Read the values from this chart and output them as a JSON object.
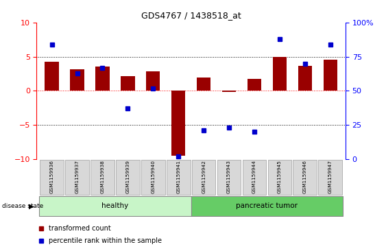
{
  "title": "GDS4767 / 1438518_at",
  "samples": [
    "GSM1159936",
    "GSM1159937",
    "GSM1159938",
    "GSM1159939",
    "GSM1159940",
    "GSM1159941",
    "GSM1159942",
    "GSM1159943",
    "GSM1159944",
    "GSM1159945",
    "GSM1159946",
    "GSM1159947"
  ],
  "transformed_count": [
    4.3,
    3.2,
    3.6,
    2.2,
    2.9,
    -9.5,
    2.0,
    -0.15,
    1.8,
    5.0,
    3.7,
    4.6
  ],
  "percentile_rank": [
    84,
    63,
    67,
    37,
    52,
    2,
    21,
    23,
    20,
    88,
    70,
    84
  ],
  "bar_color": "#990000",
  "dot_color": "#0000cc",
  "ylim_left": [
    -10,
    10
  ],
  "ylim_right": [
    0,
    100
  ],
  "yticks_left": [
    -10,
    -5,
    0,
    5,
    10
  ],
  "yticks_right": [
    0,
    25,
    50,
    75,
    100
  ],
  "ytick_labels_right": [
    "0",
    "25",
    "50",
    "75",
    "100%"
  ],
  "healthy_color": "#c8f5c8",
  "tumor_color": "#66cc66",
  "legend_items": [
    {
      "label": "transformed count",
      "color": "#990000"
    },
    {
      "label": "percentile rank within the sample",
      "color": "#0000cc"
    }
  ]
}
